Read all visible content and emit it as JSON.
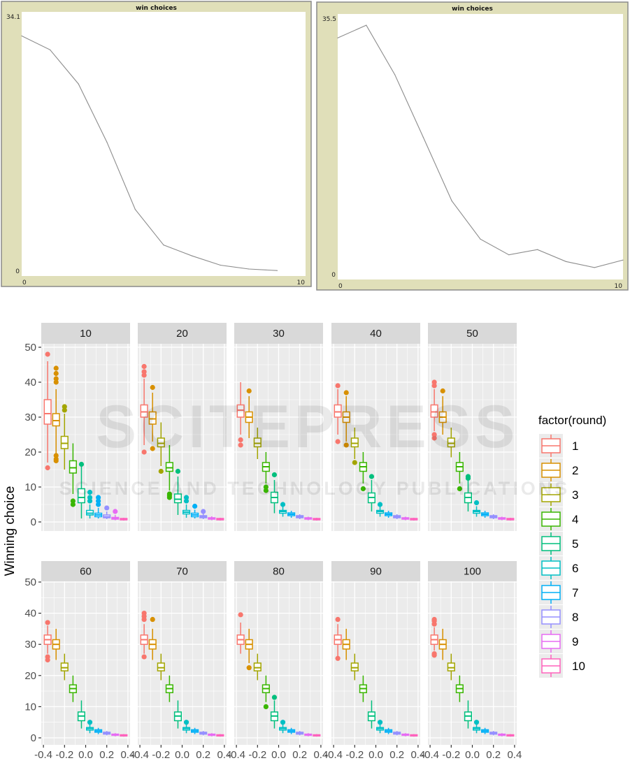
{
  "chart_data": [
    {
      "type": "line",
      "title": "win choices",
      "x": [
        0,
        1,
        2,
        3,
        4,
        5,
        6,
        7,
        8,
        9
      ],
      "values": [
        31.0,
        29.2,
        24.8,
        17.3,
        8.6,
        4.0,
        2.6,
        1.4,
        0.9,
        0.7
      ],
      "xlim": [
        0,
        10
      ],
      "ylim": [
        0,
        34.1
      ],
      "xtick_labels": [
        "0",
        "10"
      ],
      "ytick_labels": [
        "0",
        "34.1"
      ]
    },
    {
      "type": "line",
      "title": "win choices",
      "x": [
        0,
        1,
        2,
        3,
        4,
        5,
        6,
        7,
        8,
        9,
        10
      ],
      "values": [
        32.3,
        34.0,
        27.4,
        19.0,
        10.5,
        5.4,
        3.3,
        4.0,
        2.4,
        1.6,
        2.6
      ],
      "xlim": [
        0,
        10
      ],
      "ylim": [
        0,
        35.5
      ],
      "xtick_labels": [
        "0",
        "10"
      ],
      "ytick_labels": [
        "0",
        "35.5"
      ]
    },
    {
      "type": "box",
      "ylabel": "Winning choice",
      "xlabel": "",
      "ylim": [
        0,
        50
      ],
      "xlim": [
        -0.42,
        0.42
      ],
      "yticks": [
        "0",
        "10",
        "20",
        "30",
        "40",
        "50"
      ],
      "xticks": [
        "-0.4",
        "-0.2",
        "0.0",
        "0.2",
        "0.4"
      ],
      "legend": {
        "title": "factor(round)",
        "placement": "right",
        "entries": [
          "1",
          "2",
          "3",
          "4",
          "5",
          "6",
          "7",
          "8",
          "9",
          "10"
        ],
        "colors": [
          "#F8766D",
          "#D89000",
          "#A3A500",
          "#39B600",
          "#00BF7D",
          "#00BFC4",
          "#00B0F6",
          "#9590FF",
          "#E76BF3",
          "#FF62BC"
        ]
      },
      "box_format": "[lower_whisker, q1, median, q3, upper_whisker, outliers]",
      "facets": [
        {
          "label": "10",
          "boxes": [
            [
              17,
              28,
              31,
              35,
              46,
              [
                48,
                15.5
              ]
            ],
            [
              19.5,
              27.5,
              29,
              31,
              38,
              [
                40,
                41,
                42.5,
                44,
                19,
                18,
                17.5
              ]
            ],
            [
              15,
              21,
              22.5,
              24.5,
              31,
              [
                32,
                33
              ]
            ],
            [
              8,
              14,
              15.5,
              17.5,
              22.5,
              [
                6,
                5
              ]
            ],
            [
              1,
              5.5,
              7,
              9.5,
              16,
              [
                16.5
              ]
            ],
            [
              1,
              2,
              2.5,
              3.3,
              5,
              [
                6,
                7,
                8.5
              ]
            ],
            [
              1,
              1.5,
              2,
              2.5,
              4,
              [
                5,
                6,
                7
              ]
            ],
            [
              0.8,
              1.2,
              1.5,
              2,
              3,
              [
                4
              ]
            ],
            [
              0.5,
              0.8,
              1,
              1.3,
              2,
              [
                3
              ]
            ],
            [
              0.4,
              0.6,
              0.8,
              1,
              1.2,
              []
            ]
          ]
        },
        {
          "label": "20",
          "boxes": [
            [
              22,
              30,
              31.5,
              33.5,
              41,
              [
                42,
                43,
                44.5,
                20
              ]
            ],
            [
              23,
              28,
              29.5,
              31.5,
              37,
              [
                38.5,
                21
              ]
            ],
            [
              16,
              21.5,
              22.5,
              24,
              28.5,
              [
                14.5
              ]
            ],
            [
              9,
              14.5,
              15.5,
              17,
              22,
              [
                8,
                7.5,
                7
              ]
            ],
            [
              2,
              5.5,
              6.5,
              8,
              13,
              [
                14.5
              ]
            ],
            [
              1.2,
              2.3,
              2.8,
              3.3,
              5,
              [
                6,
                7
              ]
            ],
            [
              1,
              1.5,
              2,
              2.5,
              3.5,
              [
                4.5
              ]
            ],
            [
              0.8,
              1.2,
              1.5,
              1.8,
              2.5,
              [
                3
              ]
            ],
            [
              0.5,
              0.8,
              1,
              1.2,
              1.6,
              []
            ],
            [
              0.4,
              0.6,
              0.8,
              1,
              1.2,
              []
            ]
          ]
        },
        {
          "label": "30",
          "boxes": [
            [
              25,
              30,
              32,
              33.5,
              40,
              [
                22,
                23.5
              ]
            ],
            [
              24,
              28.5,
              30,
              31.5,
              36,
              [
                37.5
              ]
            ],
            [
              18,
              21.5,
              22.5,
              24,
              27,
              []
            ],
            [
              11,
              14.5,
              15.8,
              17,
              20,
              [
                9,
                10
              ]
            ],
            [
              2.5,
              5.5,
              7,
              8.5,
              12,
              [
                13.5
              ]
            ],
            [
              1.5,
              2.5,
              3,
              3.3,
              4.5,
              [
                5
              ]
            ],
            [
              1.2,
              1.8,
              2.2,
              2.6,
              3.2,
              []
            ],
            [
              0.8,
              1.2,
              1.5,
              1.8,
              2.2,
              []
            ],
            [
              0.5,
              0.8,
              1,
              1.2,
              1.5,
              []
            ],
            [
              0.4,
              0.6,
              0.8,
              1,
              1.2,
              []
            ]
          ]
        },
        {
          "label": "40",
          "boxes": [
            [
              25,
              30,
              31.5,
              33.5,
              38,
              [
                39,
                23
              ]
            ],
            [
              23,
              28.5,
              30,
              31.5,
              36,
              [
                37,
                22
              ]
            ],
            [
              18,
              21.5,
              22.5,
              24,
              27,
              [
                17
              ]
            ],
            [
              11,
              14.5,
              15.8,
              17,
              20,
              [
                9.5
              ]
            ],
            [
              3,
              5.5,
              7,
              8.3,
              12,
              [
                13
              ]
            ],
            [
              1.5,
              2.5,
              3,
              3.3,
              4.5,
              [
                5
              ]
            ],
            [
              1.2,
              1.8,
              2.2,
              2.6,
              3.2,
              []
            ],
            [
              0.8,
              1.2,
              1.5,
              1.8,
              2.2,
              []
            ],
            [
              0.5,
              0.8,
              1,
              1.2,
              1.5,
              []
            ],
            [
              0.4,
              0.6,
              0.8,
              1,
              1.2,
              []
            ]
          ]
        },
        {
          "label": "50",
          "boxes": [
            [
              26,
              30,
              31.5,
              33.5,
              38,
              [
                39,
                40,
                24,
                25
              ]
            ],
            [
              25,
              28.5,
              30,
              31.5,
              36,
              [
                37.5
              ]
            ],
            [
              18.5,
              21.5,
              22.5,
              24,
              27,
              []
            ],
            [
              11,
              14.5,
              15.8,
              17,
              20,
              [
                9.5
              ]
            ],
            [
              3,
              5.5,
              7,
              8.3,
              12,
              [
                13,
                12.5
              ]
            ],
            [
              1.5,
              2.5,
              3,
              3.3,
              4.5,
              [
                5.5
              ]
            ],
            [
              1.2,
              1.8,
              2.2,
              2.6,
              3.2,
              []
            ],
            [
              0.8,
              1.2,
              1.5,
              1.8,
              2.2,
              []
            ],
            [
              0.5,
              0.8,
              1,
              1.2,
              1.5,
              []
            ],
            [
              0.4,
              0.6,
              0.8,
              1,
              1.2,
              []
            ]
          ]
        },
        {
          "label": "60",
          "boxes": [
            [
              27,
              30,
              31.5,
              33,
              36,
              [
                37,
                25,
                26
              ]
            ],
            [
              25,
              28.5,
              30,
              31.5,
              35,
              []
            ],
            [
              18.5,
              21.5,
              22.5,
              24,
              27,
              []
            ],
            [
              11.5,
              14.5,
              15.8,
              17,
              20,
              []
            ],
            [
              3,
              5.5,
              7,
              8.3,
              12,
              []
            ],
            [
              1.5,
              2.5,
              3,
              3.3,
              4.5,
              [
                5
              ]
            ],
            [
              1.2,
              1.8,
              2.2,
              2.6,
              3.2,
              []
            ],
            [
              0.8,
              1.2,
              1.5,
              1.8,
              2.2,
              []
            ],
            [
              0.5,
              0.8,
              1,
              1.2,
              1.5,
              []
            ],
            [
              0.4,
              0.6,
              0.8,
              1,
              1.2,
              []
            ]
          ]
        },
        {
          "label": "70",
          "boxes": [
            [
              27,
              30,
              31.5,
              33,
              36.5,
              [
                38,
                39,
                40,
                26
              ]
            ],
            [
              25,
              28.5,
              30,
              31.5,
              35,
              [
                38
              ]
            ],
            [
              18.5,
              21.5,
              22.5,
              24,
              27,
              []
            ],
            [
              11.5,
              14.5,
              15.8,
              17,
              20,
              []
            ],
            [
              3,
              5.5,
              7,
              8.3,
              12,
              []
            ],
            [
              1.5,
              2.5,
              3,
              3.3,
              4.5,
              [
                5
              ]
            ],
            [
              1.2,
              1.8,
              2.2,
              2.6,
              3.2,
              []
            ],
            [
              0.8,
              1.2,
              1.5,
              1.8,
              2.2,
              []
            ],
            [
              0.5,
              0.8,
              1,
              1.2,
              1.5,
              []
            ],
            [
              0.4,
              0.6,
              0.8,
              1,
              1.2,
              []
            ]
          ]
        },
        {
          "label": "80",
          "boxes": [
            [
              27,
              30,
              31.5,
              33,
              37,
              [
                39.5
              ]
            ],
            [
              24,
              28.5,
              30,
              31.5,
              35,
              [
                22.5
              ]
            ],
            [
              18.5,
              21.5,
              22.5,
              24,
              27,
              []
            ],
            [
              11.5,
              14.5,
              15.8,
              17,
              20,
              [
                10
              ]
            ],
            [
              3,
              5.5,
              7,
              8.3,
              12,
              [
                13
              ]
            ],
            [
              1.5,
              2.5,
              3,
              3.3,
              4.5,
              [
                5
              ]
            ],
            [
              1.2,
              1.8,
              2.2,
              2.6,
              3.2,
              []
            ],
            [
              0.8,
              1.2,
              1.5,
              1.8,
              2.2,
              []
            ],
            [
              0.5,
              0.8,
              1,
              1.2,
              1.5,
              []
            ],
            [
              0.4,
              0.6,
              0.8,
              1,
              1.2,
              []
            ]
          ]
        },
        {
          "label": "90",
          "boxes": [
            [
              26,
              30,
              31.5,
              33,
              36.5,
              [
                38,
                25.5
              ]
            ],
            [
              25,
              28.5,
              30,
              31.5,
              35,
              []
            ],
            [
              18.5,
              21.5,
              22.5,
              24,
              27,
              []
            ],
            [
              11.5,
              14.5,
              15.8,
              17,
              20,
              []
            ],
            [
              3,
              5.5,
              7,
              8.3,
              12,
              []
            ],
            [
              1.5,
              2.5,
              3,
              3.3,
              4.5,
              [
                5
              ]
            ],
            [
              1.2,
              1.8,
              2.2,
              2.6,
              3.2,
              []
            ],
            [
              0.8,
              1.2,
              1.5,
              1.8,
              2.2,
              []
            ],
            [
              0.5,
              0.8,
              1,
              1.2,
              1.5,
              []
            ],
            [
              0.4,
              0.6,
              0.8,
              1,
              1.2,
              []
            ]
          ]
        },
        {
          "label": "100",
          "boxes": [
            [
              28,
              30,
              31.5,
              33,
              35.5,
              [
                36.5,
                37.5,
                38,
                26.5,
                27
              ]
            ],
            [
              25,
              28.5,
              30,
              31.5,
              35,
              []
            ],
            [
              18.5,
              21.5,
              22.5,
              24,
              27,
              []
            ],
            [
              11.5,
              14.5,
              15.8,
              17,
              20,
              []
            ],
            [
              3,
              5.5,
              7,
              8.3,
              12,
              []
            ],
            [
              1.5,
              2.5,
              3,
              3.3,
              4.5,
              [
                5
              ]
            ],
            [
              1.2,
              1.8,
              2.2,
              2.6,
              3.2,
              []
            ],
            [
              0.8,
              1.2,
              1.5,
              1.8,
              2.2,
              []
            ],
            [
              0.5,
              0.8,
              1,
              1.2,
              1.5,
              []
            ],
            [
              0.4,
              0.6,
              0.8,
              1,
              1.2,
              []
            ]
          ]
        }
      ]
    }
  ],
  "watermark": {
    "main": "SCITEPRESS",
    "sub": "SCIENCE AND TECHNOLOGY PUBLICATIONS"
  }
}
